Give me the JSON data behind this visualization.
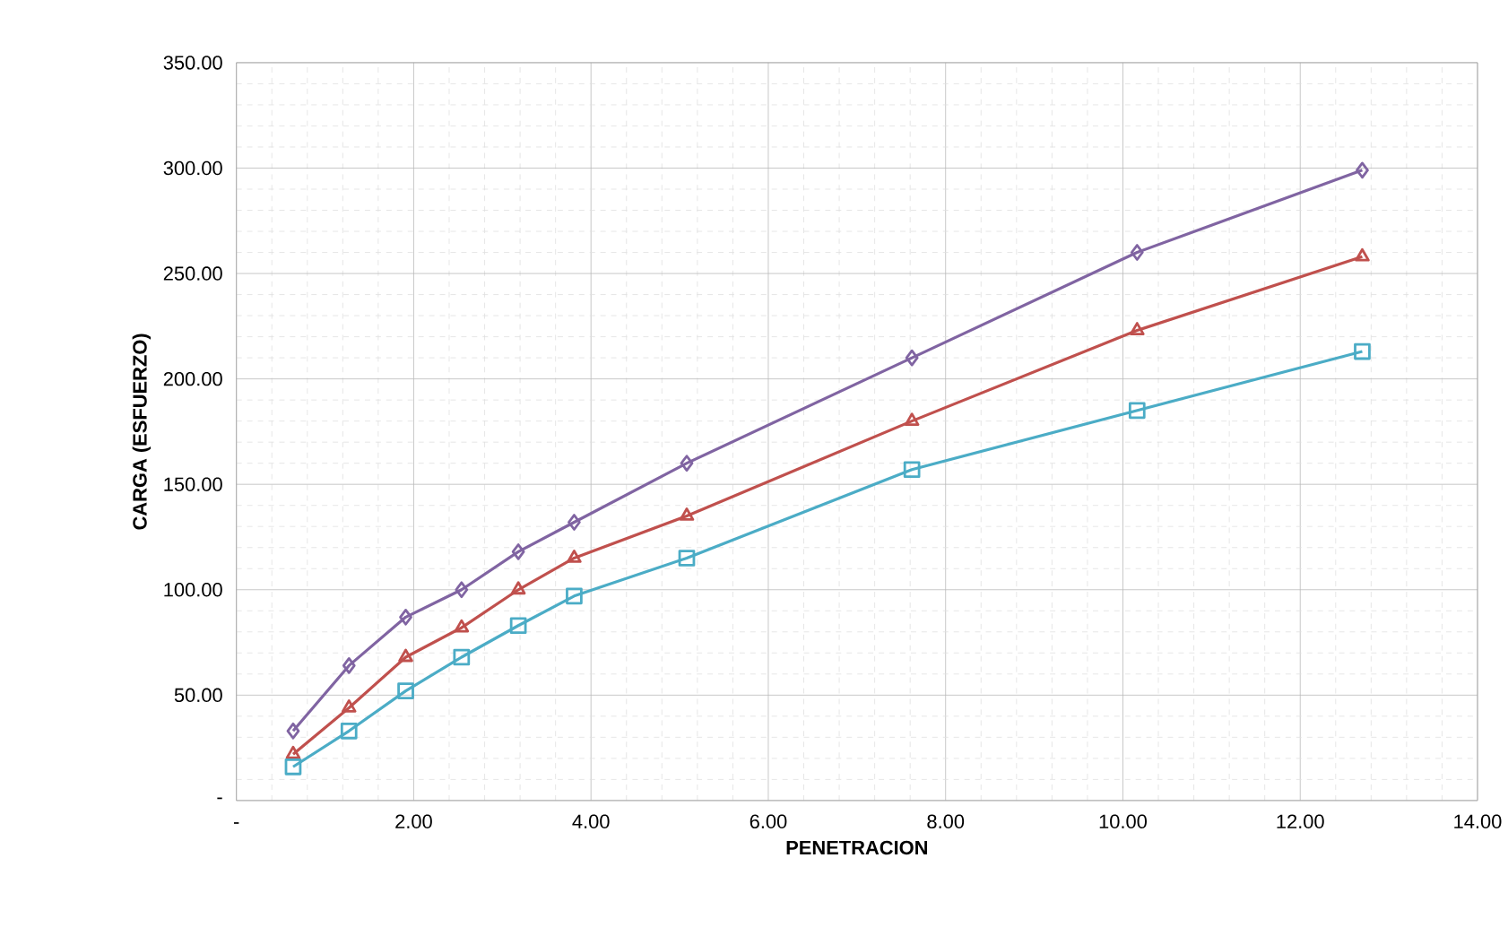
{
  "chart_data": {
    "type": "line",
    "xlabel": "PENETRACION",
    "ylabel": "CARGA (ESFUERZO)",
    "x": [
      0.64,
      1.27,
      1.91,
      2.54,
      3.18,
      3.81,
      5.08,
      7.62,
      10.16,
      12.7
    ],
    "series": [
      {
        "color": "#8064a2",
        "marker": "diamond",
        "values": [
          33,
          64,
          87,
          100,
          118,
          132,
          160,
          210,
          260,
          299
        ]
      },
      {
        "color": "#c0504d",
        "marker": "triangle",
        "values": [
          22,
          44,
          68,
          82,
          100,
          115,
          135,
          180,
          223,
          258
        ]
      },
      {
        "color": "#4bacc6",
        "marker": "square",
        "values": [
          16,
          33,
          52,
          68,
          83,
          97,
          115,
          157,
          185,
          213
        ]
      }
    ],
    "xlim": [
      0,
      14
    ],
    "ylim": [
      0,
      350
    ],
    "xticks": [
      {
        "value": 0,
        "label": "-"
      },
      {
        "value": 2,
        "label": "2.00"
      },
      {
        "value": 4,
        "label": "4.00"
      },
      {
        "value": 6,
        "label": "6.00"
      },
      {
        "value": 8,
        "label": "8.00"
      },
      {
        "value": 10,
        "label": "10.00"
      },
      {
        "value": 12,
        "label": "12.00"
      },
      {
        "value": 14,
        "label": "14.00"
      }
    ],
    "yticks": [
      {
        "value": 0,
        "label": "-"
      },
      {
        "value": 50,
        "label": "50.00"
      },
      {
        "value": 100,
        "label": "100.00"
      },
      {
        "value": 150,
        "label": "150.00"
      },
      {
        "value": 200,
        "label": "200.00"
      },
      {
        "value": 250,
        "label": "250.00"
      },
      {
        "value": 300,
        "label": "300.00"
      },
      {
        "value": 350,
        "label": "350.00"
      }
    ],
    "grid": true
  }
}
